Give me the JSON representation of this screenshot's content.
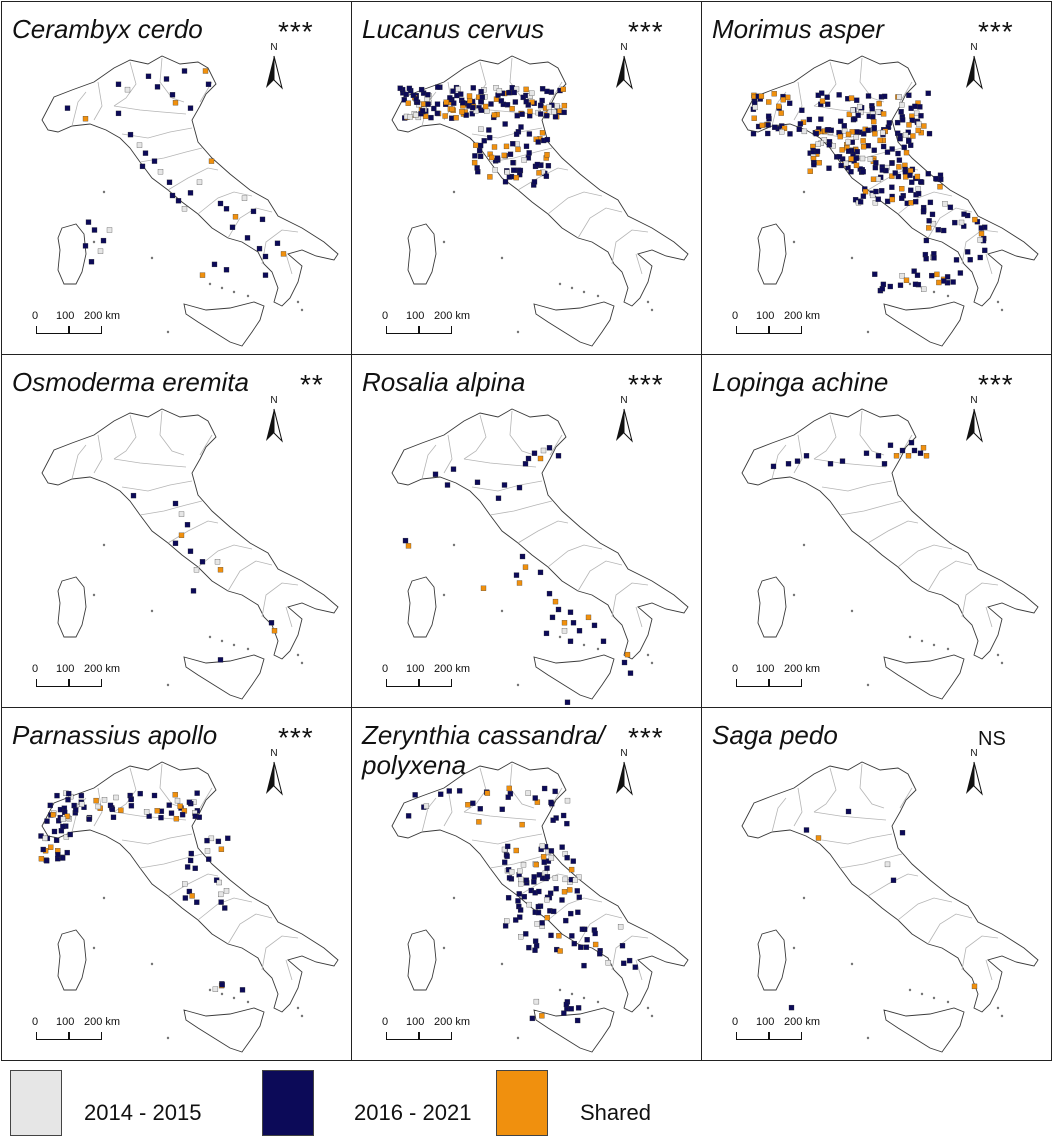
{
  "colors": {
    "period_2014_2015": "#e6e6e6",
    "period_2016_2021": "#0c0a58",
    "shared": "#f0900e",
    "border": "#222222",
    "coast": "#3a3a3a",
    "regions": "#b5b5b5"
  },
  "scale_bar": {
    "tick0": "0",
    "tick1": "100",
    "tick2": "200 km"
  },
  "north_label": "N",
  "panels": [
    {
      "species_line1": "Cerambyx cerdo",
      "species_line2": "",
      "significance": "***",
      "points": [
        [
          0.28,
          0.15,
          "b"
        ],
        [
          0.31,
          0.17,
          "g"
        ],
        [
          0.38,
          0.12,
          "b"
        ],
        [
          0.41,
          0.16,
          "b"
        ],
        [
          0.44,
          0.13,
          "b"
        ],
        [
          0.46,
          0.19,
          "b"
        ],
        [
          0.47,
          0.22,
          "o"
        ],
        [
          0.5,
          0.1,
          "b"
        ],
        [
          0.57,
          0.1,
          "o"
        ],
        [
          0.58,
          0.15,
          "b"
        ],
        [
          0.52,
          0.24,
          "b"
        ],
        [
          0.28,
          0.26,
          "b"
        ],
        [
          0.17,
          0.28,
          "o"
        ],
        [
          0.11,
          0.24,
          "b"
        ],
        [
          0.32,
          0.34,
          "b"
        ],
        [
          0.35,
          0.38,
          "g"
        ],
        [
          0.37,
          0.41,
          "b"
        ],
        [
          0.4,
          0.44,
          "b"
        ],
        [
          0.36,
          0.46,
          "b"
        ],
        [
          0.42,
          0.48,
          "g"
        ],
        [
          0.45,
          0.52,
          "b"
        ],
        [
          0.46,
          0.57,
          "b"
        ],
        [
          0.48,
          0.59,
          "b"
        ],
        [
          0.5,
          0.62,
          "g"
        ],
        [
          0.52,
          0.56,
          "b"
        ],
        [
          0.59,
          0.44,
          "o"
        ],
        [
          0.55,
          0.52,
          "g"
        ],
        [
          0.62,
          0.6,
          "b"
        ],
        [
          0.64,
          0.62,
          "b"
        ],
        [
          0.7,
          0.58,
          "g"
        ],
        [
          0.73,
          0.63,
          "b"
        ],
        [
          0.67,
          0.65,
          "o"
        ],
        [
          0.76,
          0.66,
          "b"
        ],
        [
          0.71,
          0.73,
          "b"
        ],
        [
          0.75,
          0.77,
          "b"
        ],
        [
          0.77,
          0.8,
          "b"
        ],
        [
          0.81,
          0.75,
          "b"
        ],
        [
          0.83,
          0.79,
          "o"
        ],
        [
          0.6,
          0.83,
          "b"
        ],
        [
          0.56,
          0.87,
          "o"
        ],
        [
          0.64,
          0.85,
          "b"
        ],
        [
          0.18,
          0.67,
          "b"
        ],
        [
          0.2,
          0.7,
          "b"
        ],
        [
          0.23,
          0.74,
          "b"
        ],
        [
          0.22,
          0.78,
          "g"
        ],
        [
          0.19,
          0.82,
          "b"
        ],
        [
          0.25,
          0.7,
          "g"
        ],
        [
          0.17,
          0.76,
          "b"
        ],
        [
          0.66,
          0.69,
          "b"
        ],
        [
          0.77,
          0.87,
          "b"
        ]
      ]
    },
    {
      "species_line1": "Lucanus cervus",
      "species_line2": "",
      "significance": "***",
      "points": "dense-north"
    },
    {
      "species_line1": "Morimus asper",
      "species_line2": "",
      "significance": "***",
      "points": "dense-wide"
    },
    {
      "species_line1": "Osmoderma eremita",
      "species_line2": "",
      "significance": "**",
      "points": [
        [
          0.33,
          0.37,
          "b"
        ],
        [
          0.47,
          0.4,
          "b"
        ],
        [
          0.49,
          0.44,
          "g"
        ],
        [
          0.51,
          0.48,
          "b"
        ],
        [
          0.49,
          0.52,
          "o"
        ],
        [
          0.47,
          0.55,
          "b"
        ],
        [
          0.52,
          0.58,
          "b"
        ],
        [
          0.56,
          0.62,
          "b"
        ],
        [
          0.61,
          0.62,
          "g"
        ],
        [
          0.62,
          0.65,
          "o"
        ],
        [
          0.54,
          0.65,
          "g"
        ],
        [
          0.53,
          0.73,
          "b"
        ],
        [
          0.79,
          0.85,
          "b"
        ],
        [
          0.8,
          0.88,
          "o"
        ],
        [
          0.62,
          0.99,
          "b"
        ]
      ]
    },
    {
      "species_line1": "Rosalia alpina",
      "species_line2": "",
      "significance": "***",
      "points": [
        [
          0.48,
          0.23,
          "b"
        ],
        [
          0.5,
          0.21,
          "b"
        ],
        [
          0.53,
          0.2,
          "g"
        ],
        [
          0.55,
          0.19,
          "b"
        ],
        [
          0.52,
          0.23,
          "o"
        ],
        [
          0.58,
          0.22,
          "b"
        ],
        [
          0.47,
          0.25,
          "b"
        ],
        [
          0.23,
          0.27,
          "b"
        ],
        [
          0.17,
          0.29,
          "b"
        ],
        [
          0.21,
          0.33,
          "b"
        ],
        [
          0.31,
          0.32,
          "b"
        ],
        [
          0.4,
          0.33,
          "b"
        ],
        [
          0.45,
          0.34,
          "b"
        ],
        [
          0.38,
          0.38,
          "b"
        ],
        [
          0.07,
          0.54,
          "b"
        ],
        [
          0.08,
          0.56,
          "o"
        ],
        [
          0.46,
          0.6,
          "b"
        ],
        [
          0.47,
          0.64,
          "o"
        ],
        [
          0.44,
          0.67,
          "b"
        ],
        [
          0.45,
          0.7,
          "o"
        ],
        [
          0.33,
          0.72,
          "o"
        ],
        [
          0.52,
          0.66,
          "b"
        ],
        [
          0.55,
          0.74,
          "b"
        ],
        [
          0.57,
          0.77,
          "o"
        ],
        [
          0.58,
          0.8,
          "b"
        ],
        [
          0.56,
          0.83,
          "b"
        ],
        [
          0.6,
          0.85,
          "o"
        ],
        [
          0.62,
          0.81,
          "b"
        ],
        [
          0.63,
          0.85,
          "b"
        ],
        [
          0.65,
          0.88,
          "b"
        ],
        [
          0.68,
          0.83,
          "o"
        ],
        [
          0.6,
          0.88,
          "g"
        ],
        [
          0.7,
          0.86,
          "b"
        ],
        [
          0.54,
          0.89,
          "b"
        ],
        [
          0.62,
          0.92,
          "b"
        ],
        [
          0.73,
          0.92,
          "b"
        ],
        [
          0.81,
          0.97,
          "o"
        ],
        [
          0.8,
          1.0,
          "b"
        ],
        [
          0.82,
          1.04,
          "b"
        ],
        [
          0.61,
          1.15,
          "b"
        ],
        [
          0.55,
          1.2,
          "b"
        ]
      ]
    },
    {
      "species_line1": "Lopinga achine",
      "species_line2": "",
      "significance": "***",
      "points": [
        [
          0.13,
          0.26,
          "b"
        ],
        [
          0.18,
          0.25,
          "b"
        ],
        [
          0.21,
          0.24,
          "b"
        ],
        [
          0.24,
          0.22,
          "b"
        ],
        [
          0.32,
          0.25,
          "b"
        ],
        [
          0.36,
          0.24,
          "b"
        ],
        [
          0.44,
          0.21,
          "b"
        ],
        [
          0.48,
          0.22,
          "b"
        ],
        [
          0.5,
          0.25,
          "b"
        ],
        [
          0.54,
          0.22,
          "o"
        ],
        [
          0.56,
          0.2,
          "b"
        ],
        [
          0.58,
          0.22,
          "o"
        ],
        [
          0.6,
          0.2,
          "b"
        ],
        [
          0.62,
          0.21,
          "b"
        ],
        [
          0.64,
          0.22,
          "o"
        ],
        [
          0.52,
          0.18,
          "b"
        ],
        [
          0.59,
          0.17,
          "b"
        ],
        [
          0.63,
          0.19,
          "o"
        ]
      ]
    },
    {
      "species_line1": "Parnassius apollo",
      "species_line2": "",
      "significance": "***",
      "points": "alpine"
    },
    {
      "species_line1": "Zerynthia cassandra/",
      "species_line2": "polyxena",
      "significance": "***",
      "points": "scattered"
    },
    {
      "species_line1": "Saga pedo",
      "species_line2": "",
      "significance": "NS",
      "points": [
        [
          0.24,
          0.3,
          "b"
        ],
        [
          0.28,
          0.33,
          "o"
        ],
        [
          0.38,
          0.23,
          "b"
        ],
        [
          0.56,
          0.31,
          "b"
        ],
        [
          0.51,
          0.43,
          "g"
        ],
        [
          0.53,
          0.49,
          "b"
        ],
        [
          0.8,
          0.89,
          "o"
        ],
        [
          0.19,
          0.97,
          "b"
        ]
      ]
    }
  ],
  "legend": [
    {
      "key": "period_2014_2015",
      "label": "2014 - 2015"
    },
    {
      "key": "period_2016_2021",
      "label": "2016 - 2021"
    },
    {
      "key": "shared",
      "label": "Shared"
    }
  ]
}
